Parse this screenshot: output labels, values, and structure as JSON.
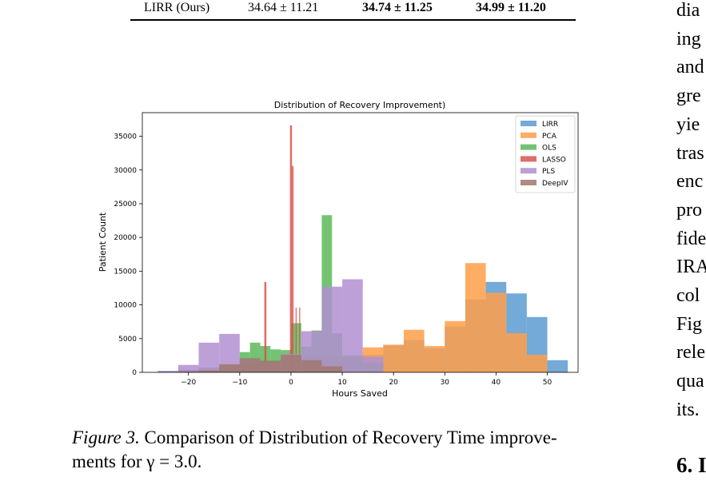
{
  "table": {
    "row": [
      "LIRR (Ours)",
      "34.64 ± 11.21",
      "34.74 ± 11.25",
      "34.99 ± 11.20"
    ]
  },
  "chart_data": {
    "type": "histogram",
    "title": "Distribution of Recovery Improvement)",
    "xlabel": "Hours Saved",
    "ylabel": "Patient Count",
    "xlim": [
      -29,
      56
    ],
    "ylim": [
      0,
      38500
    ],
    "xticks": [
      -20,
      -10,
      0,
      10,
      20,
      30,
      40,
      50
    ],
    "yticks": [
      0,
      5000,
      10000,
      15000,
      20000,
      25000,
      30000,
      35000
    ],
    "legend_position": "top-right",
    "series": [
      {
        "name": "LIRR",
        "color": "#5b9bd0",
        "bins": [
          [
            -26,
            -22,
            200
          ],
          [
            -22,
            -18,
            400
          ],
          [
            -18,
            -14,
            700
          ],
          [
            -14,
            -10,
            900
          ],
          [
            -10,
            -6,
            1200
          ],
          [
            -6,
            -2,
            1500
          ],
          [
            -2,
            2,
            1800
          ],
          [
            2,
            6,
            2200
          ],
          [
            6,
            10,
            2500
          ],
          [
            10,
            14,
            2200
          ],
          [
            14,
            18,
            2600
          ],
          [
            18,
            22,
            4000
          ],
          [
            22,
            26,
            4800
          ],
          [
            26,
            30,
            3600
          ],
          [
            30,
            34,
            6800
          ],
          [
            34,
            38,
            10800
          ],
          [
            38,
            42,
            13400
          ],
          [
            42,
            46,
            11700
          ],
          [
            46,
            50,
            8200
          ],
          [
            50,
            54,
            1800
          ]
        ]
      },
      {
        "name": "PCA",
        "color": "#ff9f4a",
        "bins": [
          [
            -22,
            -18,
            200
          ],
          [
            -18,
            -14,
            500
          ],
          [
            -14,
            -10,
            800
          ],
          [
            -10,
            -6,
            1300
          ],
          [
            -6,
            -2,
            1800
          ],
          [
            -2,
            2,
            2000
          ],
          [
            2,
            6,
            2400
          ],
          [
            6,
            10,
            2600
          ],
          [
            10,
            14,
            2200
          ],
          [
            14,
            18,
            3700
          ],
          [
            18,
            22,
            4100
          ],
          [
            22,
            26,
            6300
          ],
          [
            26,
            30,
            3900
          ],
          [
            30,
            34,
            7600
          ],
          [
            34,
            38,
            16200
          ],
          [
            38,
            42,
            11800
          ],
          [
            42,
            46,
            5800
          ],
          [
            46,
            50,
            2600
          ]
        ]
      },
      {
        "name": "OLS",
        "color": "#5bb85b",
        "bins": [
          [
            -14,
            -10,
            400
          ],
          [
            -10,
            -8,
            3000
          ],
          [
            -8,
            -6,
            4400
          ],
          [
            -6,
            -4,
            3900
          ],
          [
            -4,
            -2,
            3400
          ],
          [
            -2,
            0,
            3300
          ],
          [
            0,
            2,
            7300
          ],
          [
            2,
            4,
            3800
          ],
          [
            4,
            6,
            6200
          ],
          [
            6,
            8,
            23300
          ],
          [
            8,
            10,
            5800
          ],
          [
            10,
            14,
            2500
          ],
          [
            14,
            18,
            1400
          ]
        ]
      },
      {
        "name": "LASSO",
        "color": "#d9534f",
        "bins": [
          [
            -5.2,
            -4.8,
            13400
          ],
          [
            -0.2,
            0.2,
            36600
          ],
          [
            0.2,
            0.5,
            30600
          ],
          [
            0.9,
            1.1,
            9600
          ],
          [
            1.6,
            1.8,
            9600
          ]
        ]
      },
      {
        "name": "PLS",
        "color": "#b08fd0",
        "bins": [
          [
            -26,
            -22,
            200
          ],
          [
            -22,
            -18,
            1100
          ],
          [
            -18,
            -14,
            4400
          ],
          [
            -14,
            -10,
            5700
          ],
          [
            -10,
            -6,
            2000
          ],
          [
            -6,
            -2,
            1500
          ],
          [
            -2,
            2,
            2700
          ],
          [
            2,
            6,
            6100
          ],
          [
            6,
            10,
            12700
          ],
          [
            10,
            14,
            13800
          ],
          [
            14,
            18,
            2300
          ]
        ]
      },
      {
        "name": "DeepIV",
        "color": "#a0786e",
        "bins": [
          [
            -22,
            -18,
            150
          ],
          [
            -18,
            -14,
            300
          ],
          [
            -14,
            -10,
            1200
          ],
          [
            -10,
            -6,
            2100
          ],
          [
            -6,
            -2,
            1700
          ],
          [
            -2,
            2,
            2600
          ],
          [
            2,
            6,
            1800
          ],
          [
            6,
            10,
            900
          ]
        ]
      }
    ]
  },
  "caption": {
    "label": "Figure 3.",
    "line1": "Comparison of Distribution of Recovery Time improve-",
    "line2": "ments for γ = 3.0."
  },
  "right_column_fragments": [
    "dia",
    "ing",
    "and",
    "gre",
    "yie",
    "tras",
    "enc",
    "pro",
    "fide",
    "IRA",
    "col",
    "Fig",
    "rele",
    "qua",
    "its."
  ],
  "section_heading": "6. I"
}
